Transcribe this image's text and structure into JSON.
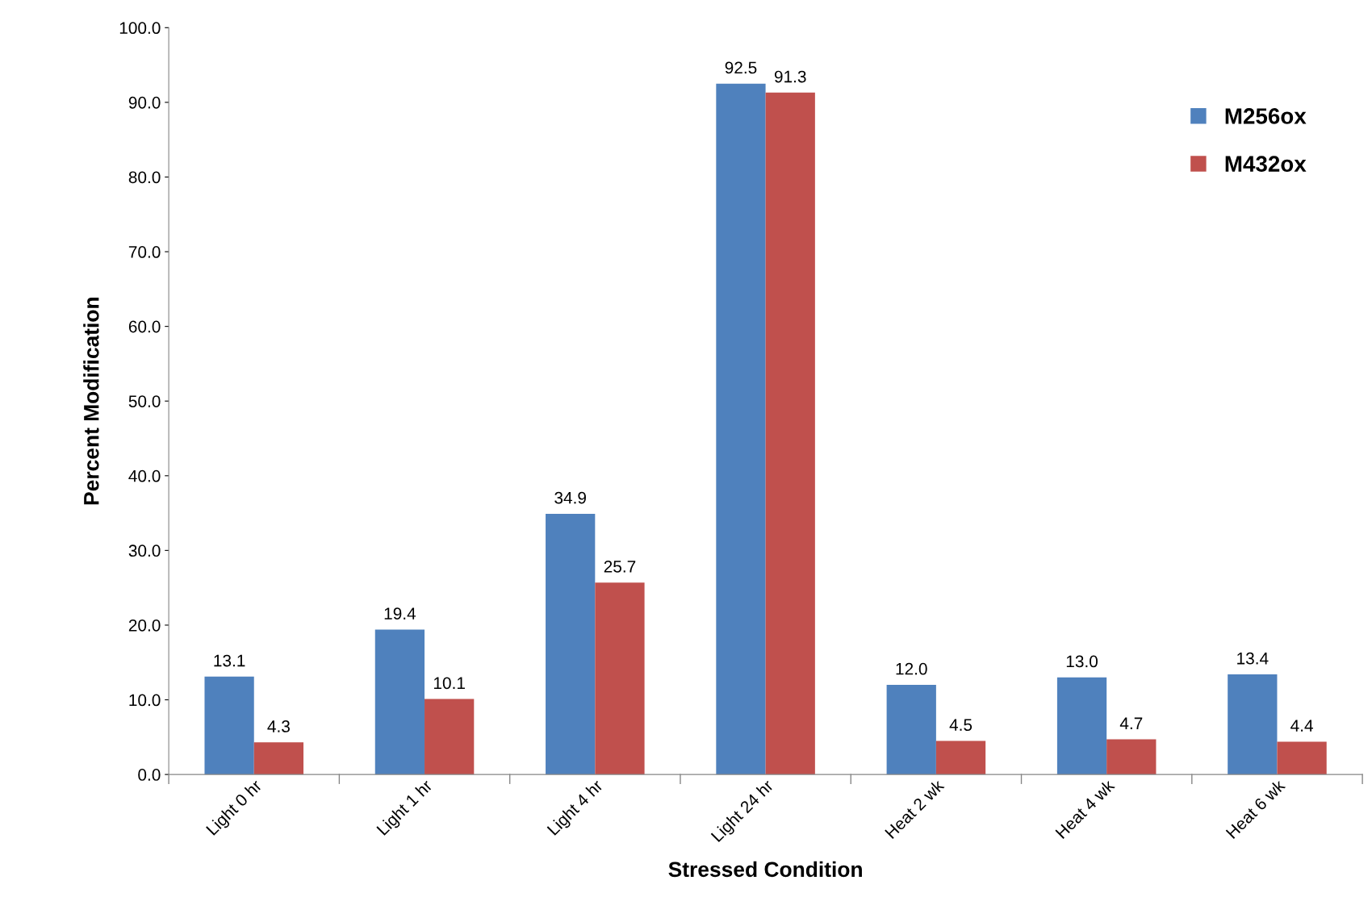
{
  "chart_data": {
    "type": "bar",
    "xlabel": "Stressed Condition",
    "ylabel": "Percent Modification",
    "categories": [
      "Light 0 hr",
      "Light 1 hr",
      "Light 4 hr",
      "Light 24 hr",
      "Heat 2 wk",
      "Heat 4 wk",
      "Heat 6 wk"
    ],
    "series": [
      {
        "name": "M256ox",
        "color": "#4f81bd",
        "values": [
          13.1,
          19.4,
          34.9,
          92.5,
          12.0,
          13.0,
          13.4
        ],
        "value_labels": [
          "13.1",
          "19.4",
          "34.9",
          "92.5",
          "12.0",
          "13.0",
          "13.4"
        ]
      },
      {
        "name": "M432ox",
        "color": "#c0504d",
        "values": [
          4.3,
          10.1,
          25.7,
          91.3,
          4.5,
          4.7,
          4.4
        ],
        "value_labels": [
          "4.3",
          "10.1",
          "25.7",
          "91.3",
          "4.5",
          "4.7",
          "4.4"
        ]
      }
    ],
    "ylim": [
      0,
      100
    ],
    "yticks": [
      {
        "value": 0,
        "label": "0.0"
      },
      {
        "value": 10,
        "label": "10.0"
      },
      {
        "value": 20,
        "label": "20.0"
      },
      {
        "value": 30,
        "label": "30.0"
      },
      {
        "value": 40,
        "label": "40.0"
      },
      {
        "value": 50,
        "label": "50.0"
      },
      {
        "value": 60,
        "label": "60.0"
      },
      {
        "value": 70,
        "label": "70.0"
      },
      {
        "value": 80,
        "label": "80.0"
      },
      {
        "value": 90,
        "label": "90.0"
      },
      {
        "value": 100,
        "label": "100.0"
      }
    ],
    "grid": false,
    "legend": "top right"
  }
}
